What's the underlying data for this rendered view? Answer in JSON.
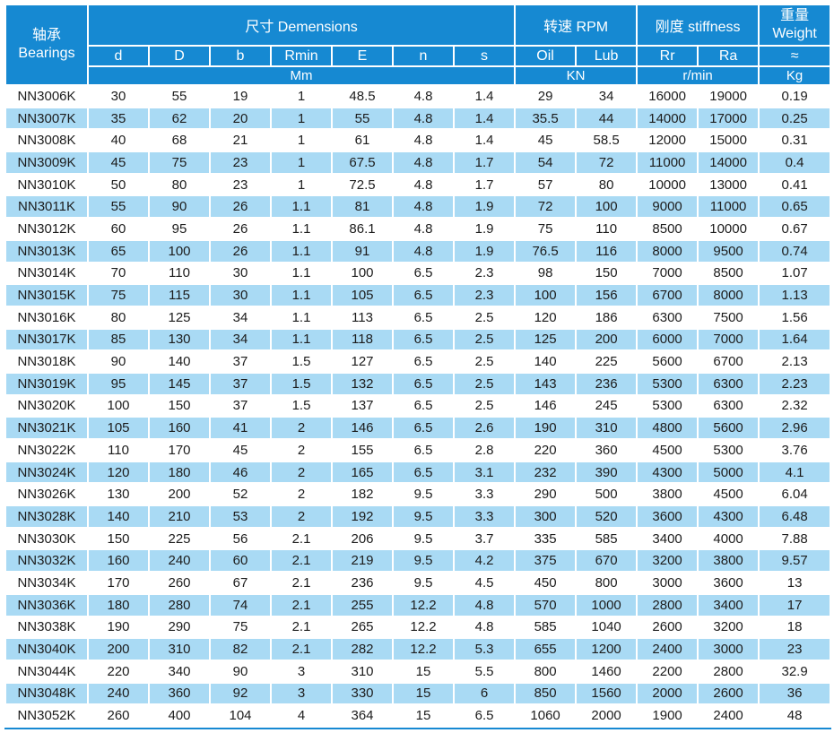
{
  "colors": {
    "header_blue": "#1689d2",
    "row_alt_blue": "#a9daf4",
    "text_dark": "#1c1c1c"
  },
  "header": {
    "bearings_zh": "轴承",
    "bearings_en": "Bearings",
    "group_dimensions": "尺寸 Demensions",
    "group_rpm": "转速 RPM",
    "group_stiffness": "刚度 stiffness",
    "group_weight_zh": "重量",
    "group_weight_en": "Weight",
    "columns": [
      "d",
      "D",
      "b",
      "Rmin",
      "E",
      "n",
      "s",
      "Oil",
      "Lub",
      "Rr",
      "Ra",
      "≈"
    ],
    "unit_dimensions": "Mm",
    "unit_rpm": "KN",
    "unit_stiffness": "r/min",
    "unit_weight": "Kg"
  },
  "rows": [
    {
      "name": "NN3006K",
      "values": [
        30,
        55,
        19,
        1,
        48.5,
        4.8,
        1.4,
        29,
        34,
        16000,
        19000,
        0.19
      ]
    },
    {
      "name": "NN3007K",
      "values": [
        35,
        62,
        20,
        1,
        55,
        4.8,
        1.4,
        35.5,
        44,
        14000,
        17000,
        0.25
      ]
    },
    {
      "name": "NN3008K",
      "values": [
        40,
        68,
        21,
        1,
        61,
        4.8,
        1.4,
        45,
        58.5,
        12000,
        15000,
        0.31
      ]
    },
    {
      "name": "NN3009K",
      "values": [
        45,
        75,
        23,
        1,
        67.5,
        4.8,
        1.7,
        54,
        72,
        11000,
        14000,
        0.4
      ]
    },
    {
      "name": "NN3010K",
      "values": [
        50,
        80,
        23,
        1,
        72.5,
        4.8,
        1.7,
        57,
        80,
        10000,
        13000,
        0.41
      ]
    },
    {
      "name": "NN3011K",
      "values": [
        55,
        90,
        26,
        1.1,
        81,
        4.8,
        1.9,
        72,
        100,
        9000,
        11000,
        0.65
      ]
    },
    {
      "name": "NN3012K",
      "values": [
        60,
        95,
        26,
        1.1,
        86.1,
        4.8,
        1.9,
        75,
        110,
        8500,
        10000,
        0.67
      ]
    },
    {
      "name": "NN3013K",
      "values": [
        65,
        100,
        26,
        1.1,
        91,
        4.8,
        1.9,
        76.5,
        116,
        8000,
        9500,
        0.74
      ]
    },
    {
      "name": "NN3014K",
      "values": [
        70,
        110,
        30,
        1.1,
        100,
        6.5,
        2.3,
        98,
        150,
        7000,
        8500,
        1.07
      ]
    },
    {
      "name": "NN3015K",
      "values": [
        75,
        115,
        30,
        1.1,
        105,
        6.5,
        2.3,
        100,
        156,
        6700,
        8000,
        1.13
      ]
    },
    {
      "name": "NN3016K",
      "values": [
        80,
        125,
        34,
        1.1,
        113,
        6.5,
        2.5,
        120,
        186,
        6300,
        7500,
        1.56
      ]
    },
    {
      "name": "NN3017K",
      "values": [
        85,
        130,
        34,
        1.1,
        118,
        6.5,
        2.5,
        125,
        200,
        6000,
        7000,
        1.64
      ]
    },
    {
      "name": "NN3018K",
      "values": [
        90,
        140,
        37,
        1.5,
        127,
        6.5,
        2.5,
        140,
        225,
        5600,
        6700,
        2.13
      ]
    },
    {
      "name": "NN3019K",
      "values": [
        95,
        145,
        37,
        1.5,
        132,
        6.5,
        2.5,
        143,
        236,
        5300,
        6300,
        2.23
      ]
    },
    {
      "name": "NN3020K",
      "values": [
        100,
        150,
        37,
        1.5,
        137,
        6.5,
        2.5,
        146,
        245,
        5300,
        6300,
        2.32
      ]
    },
    {
      "name": "NN3021K",
      "values": [
        105,
        160,
        41,
        2,
        146,
        6.5,
        2.6,
        190,
        310,
        4800,
        5600,
        2.96
      ]
    },
    {
      "name": "NN3022K",
      "values": [
        110,
        170,
        45,
        2,
        155,
        6.5,
        2.8,
        220,
        360,
        4500,
        5300,
        3.76
      ]
    },
    {
      "name": "NN3024K",
      "values": [
        120,
        180,
        46,
        2,
        165,
        6.5,
        3.1,
        232,
        390,
        4300,
        5000,
        4.1
      ]
    },
    {
      "name": "NN3026K",
      "values": [
        130,
        200,
        52,
        2,
        182,
        9.5,
        3.3,
        290,
        500,
        3800,
        4500,
        6.04
      ]
    },
    {
      "name": "NN3028K",
      "values": [
        140,
        210,
        53,
        2,
        192,
        9.5,
        3.3,
        300,
        520,
        3600,
        4300,
        6.48
      ]
    },
    {
      "name": "NN3030K",
      "values": [
        150,
        225,
        56,
        2.1,
        206,
        9.5,
        3.7,
        335,
        585,
        3400,
        4000,
        7.88
      ]
    },
    {
      "name": "NN3032K",
      "values": [
        160,
        240,
        60,
        2.1,
        219,
        9.5,
        4.2,
        375,
        670,
        3200,
        3800,
        9.57
      ]
    },
    {
      "name": "NN3034K",
      "values": [
        170,
        260,
        67,
        2.1,
        236,
        9.5,
        4.5,
        450,
        800,
        3000,
        3600,
        13
      ]
    },
    {
      "name": "NN3036K",
      "values": [
        180,
        280,
        74,
        2.1,
        255,
        12.2,
        4.8,
        570,
        1000,
        2800,
        3400,
        17
      ]
    },
    {
      "name": "NN3038K",
      "values": [
        190,
        290,
        75,
        2.1,
        265,
        12.2,
        4.8,
        585,
        1040,
        2600,
        3200,
        18
      ]
    },
    {
      "name": "NN3040K",
      "values": [
        200,
        310,
        82,
        2.1,
        282,
        12.2,
        5.3,
        655,
        1200,
        2400,
        3000,
        23
      ]
    },
    {
      "name": "NN3044K",
      "values": [
        220,
        340,
        90,
        3,
        310,
        15,
        5.5,
        800,
        1460,
        2200,
        2800,
        32.9
      ]
    },
    {
      "name": "NN3048K",
      "values": [
        240,
        360,
        92,
        3,
        330,
        15,
        6,
        850,
        1560,
        2000,
        2600,
        36
      ]
    },
    {
      "name": "NN3052K",
      "values": [
        260,
        400,
        104,
        4,
        364,
        15,
        6.5,
        1060,
        2000,
        1900,
        2400,
        48
      ]
    }
  ]
}
